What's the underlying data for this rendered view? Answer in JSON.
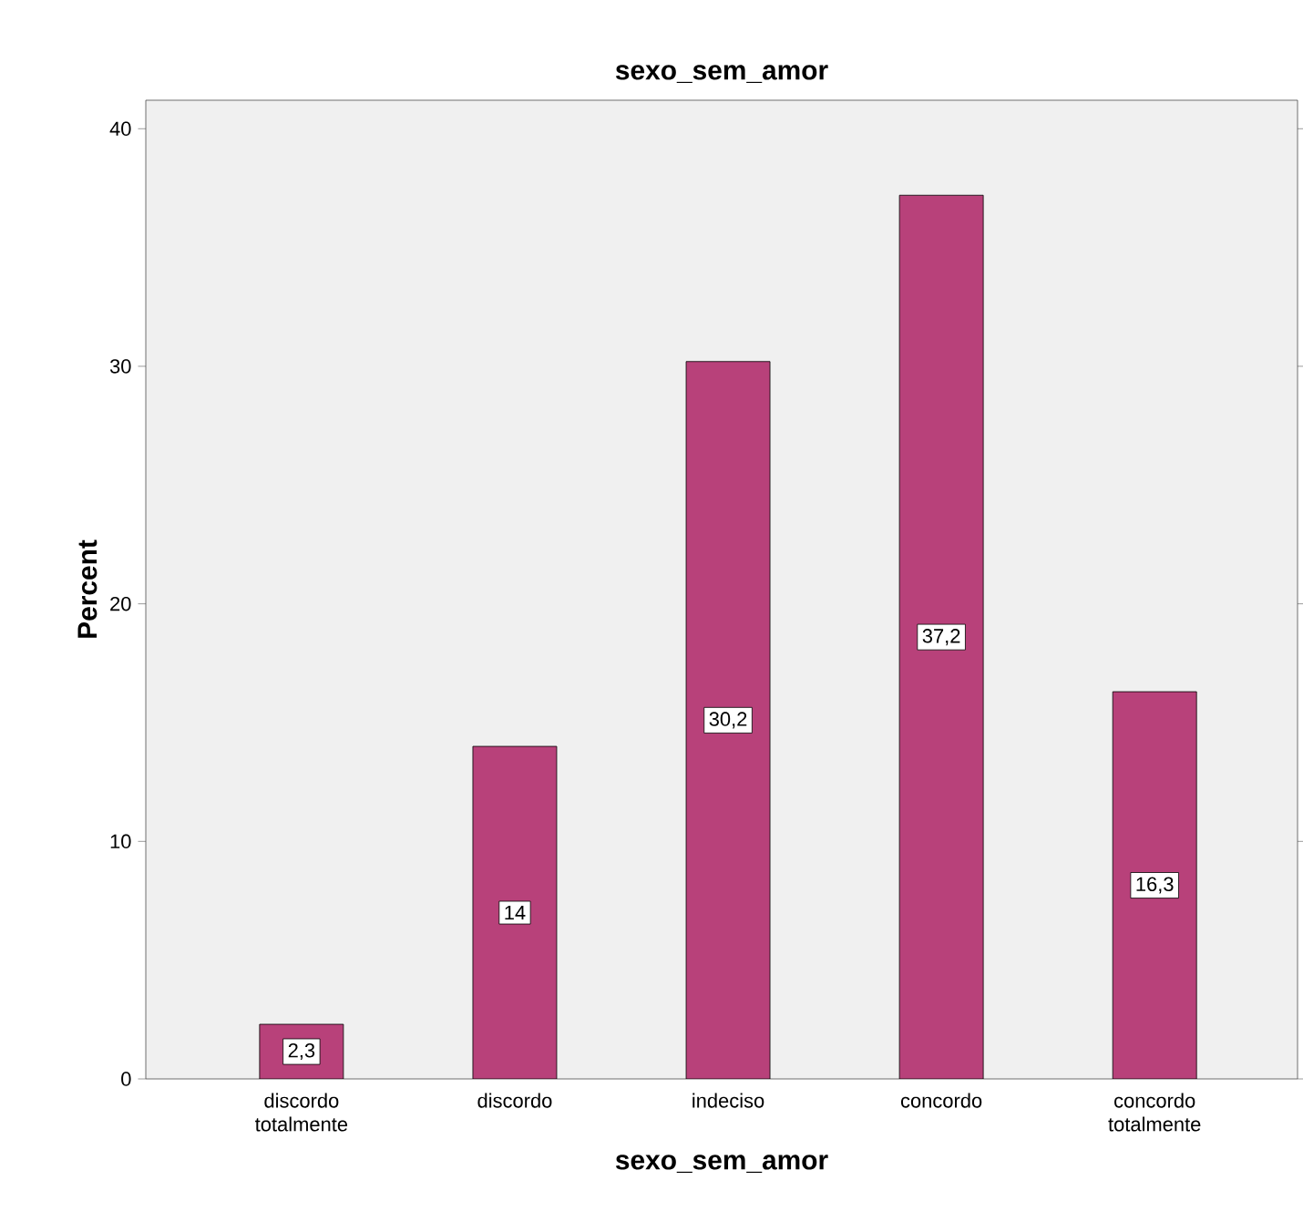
{
  "chart_data": {
    "type": "bar",
    "title": "sexo_sem_amor",
    "xlabel": "sexo_sem_amor",
    "ylabel": "Percent",
    "categories": [
      "discordo totalmente",
      "discordo",
      "indeciso",
      "concordo",
      "concordo totalmente"
    ],
    "values": [
      2.3,
      14,
      30.2,
      37.2,
      16.3
    ],
    "value_labels": [
      "2,3",
      "14",
      "30,2",
      "37,2",
      "16,3"
    ],
    "color": "#b8417a",
    "ylim": [
      0,
      41.2
    ],
    "yticks": [
      0,
      10,
      20,
      30,
      40
    ]
  }
}
